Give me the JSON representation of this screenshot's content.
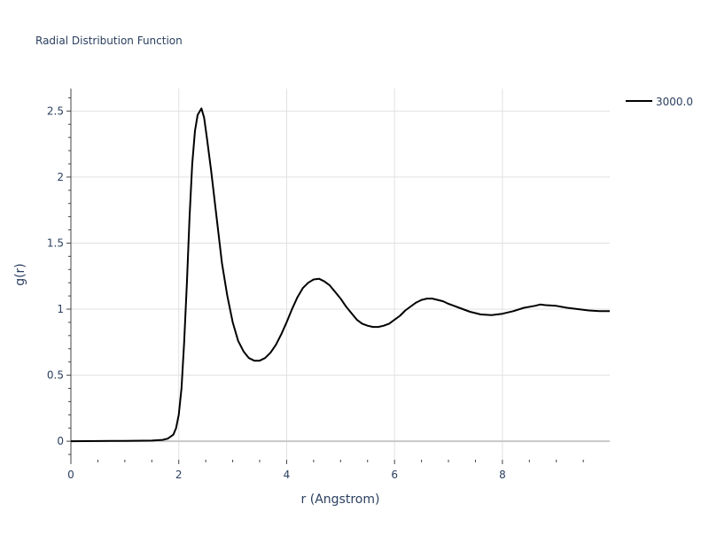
{
  "chart_data": {
    "type": "line",
    "title": "Radial Distribution Function",
    "xlabel": "r (Angstrom)",
    "ylabel": "g(r)",
    "xlim": [
      0,
      9.99
    ],
    "ylim": [
      -0.14,
      2.67
    ],
    "xticks": [
      0,
      2,
      4,
      6,
      8
    ],
    "xtick_labels": [
      "0",
      "2",
      "4",
      "6",
      "8"
    ],
    "yticks": [
      0,
      0.5,
      1,
      1.5,
      2,
      2.5
    ],
    "ytick_labels": [
      "0",
      "0.5",
      "1",
      "1.5",
      "2",
      "2.5"
    ],
    "grid": true,
    "legend_position": "top-right",
    "series": [
      {
        "name": "3000.0",
        "color": "#000000",
        "x": [
          0,
          1,
          1.5,
          1.7,
          1.8,
          1.9,
          1.95,
          2.0,
          2.05,
          2.1,
          2.15,
          2.2,
          2.25,
          2.3,
          2.35,
          2.42,
          2.47,
          2.52,
          2.6,
          2.7,
          2.8,
          2.9,
          3.0,
          3.1,
          3.2,
          3.3,
          3.4,
          3.5,
          3.6,
          3.7,
          3.8,
          3.9,
          4.0,
          4.1,
          4.2,
          4.3,
          4.4,
          4.5,
          4.6,
          4.7,
          4.8,
          4.9,
          5.0,
          5.1,
          5.2,
          5.3,
          5.4,
          5.5,
          5.6,
          5.7,
          5.8,
          5.9,
          6.0,
          6.1,
          6.2,
          6.3,
          6.4,
          6.5,
          6.6,
          6.7,
          6.8,
          6.9,
          7.0,
          7.2,
          7.4,
          7.6,
          7.8,
          8.0,
          8.2,
          8.4,
          8.6,
          8.7,
          8.8,
          9.0,
          9.2,
          9.4,
          9.6,
          9.8,
          9.99
        ],
        "y": [
          0,
          0.003,
          0.005,
          0.01,
          0.02,
          0.05,
          0.1,
          0.2,
          0.4,
          0.75,
          1.2,
          1.7,
          2.1,
          2.35,
          2.47,
          2.52,
          2.45,
          2.3,
          2.05,
          1.7,
          1.35,
          1.1,
          0.9,
          0.76,
          0.68,
          0.63,
          0.61,
          0.61,
          0.63,
          0.67,
          0.73,
          0.81,
          0.9,
          1.0,
          1.09,
          1.16,
          1.2,
          1.225,
          1.23,
          1.21,
          1.18,
          1.13,
          1.08,
          1.02,
          0.97,
          0.92,
          0.89,
          0.875,
          0.865,
          0.865,
          0.875,
          0.89,
          0.92,
          0.95,
          0.99,
          1.02,
          1.05,
          1.07,
          1.08,
          1.08,
          1.07,
          1.06,
          1.04,
          1.01,
          0.98,
          0.96,
          0.955,
          0.965,
          0.985,
          1.01,
          1.025,
          1.035,
          1.03,
          1.025,
          1.01,
          1.0,
          0.99,
          0.985,
          0.985
        ]
      }
    ]
  }
}
